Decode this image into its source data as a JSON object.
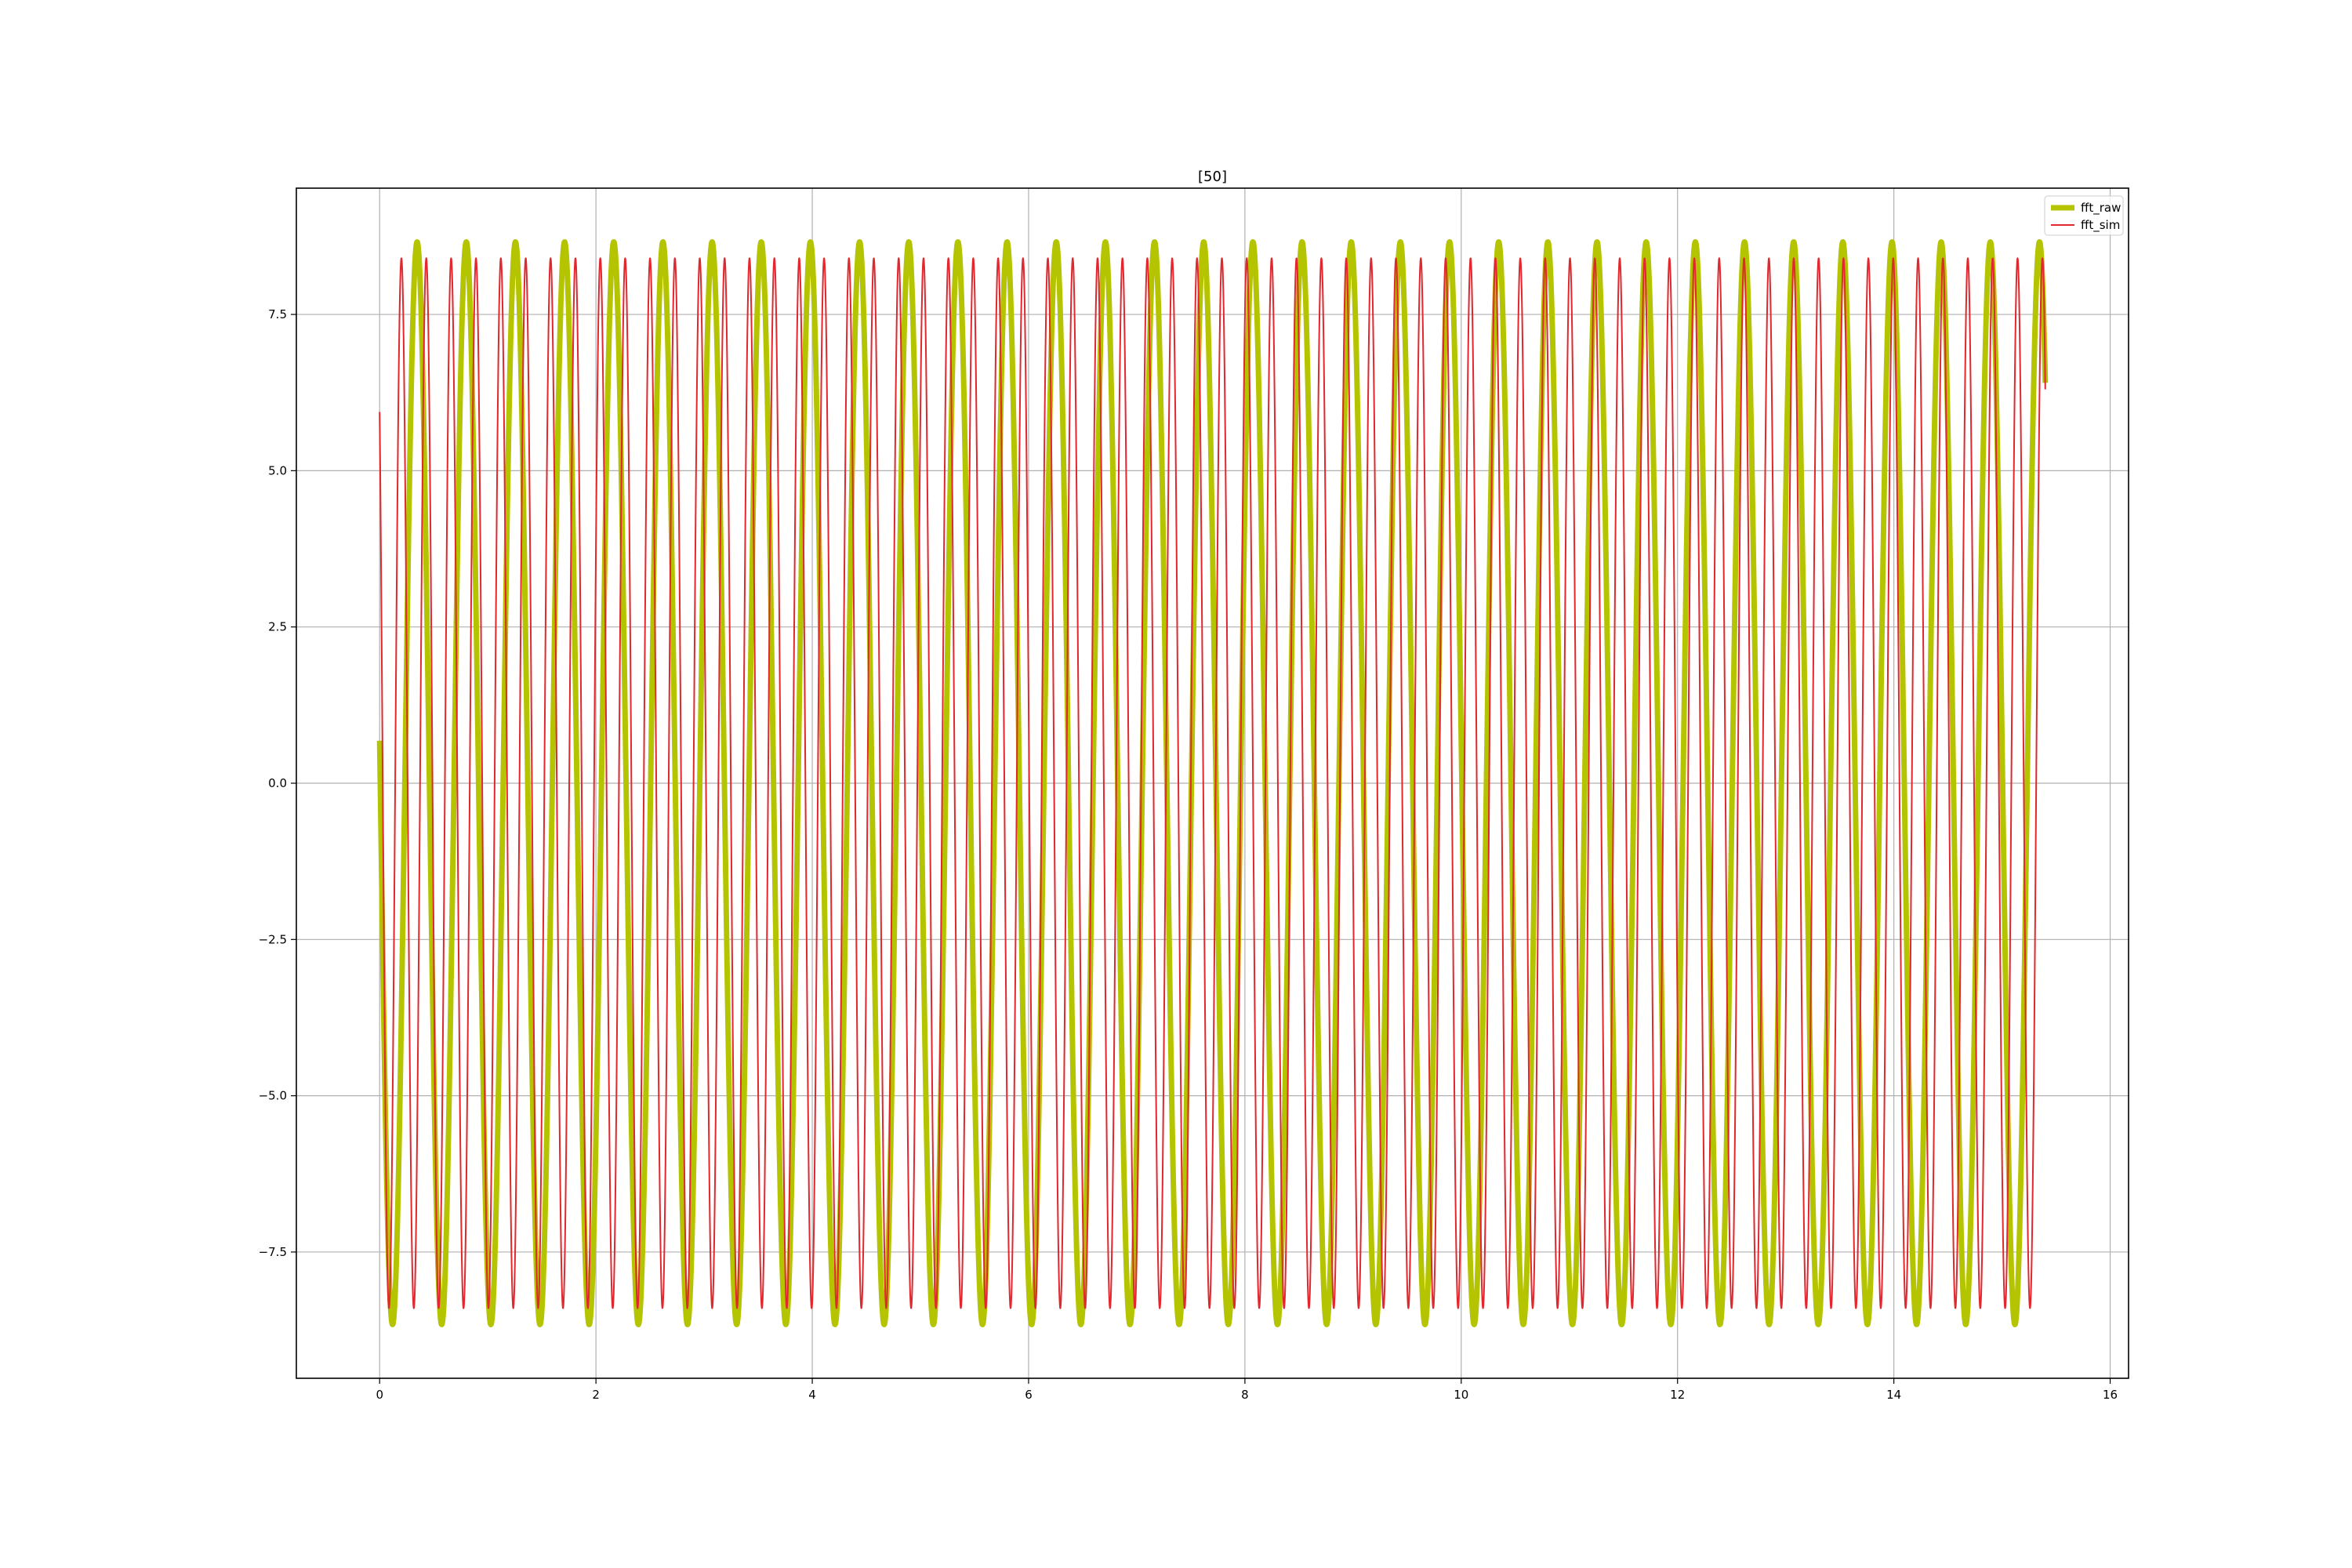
{
  "chart_data": {
    "type": "line",
    "title": "[50]",
    "xlabel": "",
    "ylabel": "",
    "xlim": [
      -0.77,
      16.17
    ],
    "ylim": [
      -9.52,
      9.52
    ],
    "xticks": [
      0,
      2,
      4,
      6,
      8,
      10,
      12,
      14,
      16
    ],
    "xtick_labels": [
      "0",
      "2",
      "4",
      "6",
      "8",
      "10",
      "12",
      "14",
      "16"
    ],
    "yticks": [
      -7.5,
      -5.0,
      -2.5,
      0.0,
      2.5,
      5.0,
      7.5
    ],
    "ytick_labels": [
      "−7.5",
      "−5.0",
      "−2.5",
      "0.0",
      "2.5",
      "5.0",
      "7.5"
    ],
    "grid": true,
    "legend_position": "top-right",
    "series": [
      {
        "name": "fft_raw",
        "color": "#b5c400",
        "kind": "sinusoid",
        "amplitude": 8.66,
        "frequency_hz": 2.2,
        "phase_deg": 85.5,
        "x_range": [
          0,
          15.4
        ]
      },
      {
        "name": "fft_sim",
        "color": "#e0282e",
        "kind": "sinusoid",
        "amplitude": 8.4,
        "frequency_hz": 4.35,
        "phase_deg": 45,
        "x_range": [
          0,
          15.4
        ]
      }
    ]
  }
}
